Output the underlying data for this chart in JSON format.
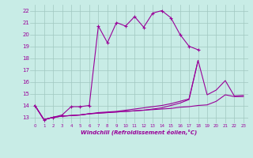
{
  "xlabel": "Windchill (Refroidissement éolien,°C)",
  "xlim": [
    -0.5,
    23.5
  ],
  "ylim": [
    12.5,
    22.5
  ],
  "yticks": [
    13,
    14,
    15,
    16,
    17,
    18,
    19,
    20,
    21,
    22
  ],
  "xticks": [
    0,
    1,
    2,
    3,
    4,
    5,
    6,
    7,
    8,
    9,
    10,
    11,
    12,
    13,
    14,
    15,
    16,
    17,
    18,
    19,
    20,
    21,
    22,
    23
  ],
  "bg_color": "#c8ece6",
  "grid_color": "#a0c8c0",
  "line_color": "#990099",
  "line1_x": [
    0,
    1,
    2,
    3,
    4,
    5,
    6,
    7,
    8,
    9,
    10,
    11,
    12,
    13,
    14,
    15,
    16,
    17,
    18
  ],
  "line1_y": [
    14.0,
    12.8,
    13.0,
    13.2,
    13.9,
    13.9,
    14.0,
    20.7,
    19.3,
    21.0,
    20.7,
    21.5,
    20.6,
    21.8,
    22.0,
    21.4,
    20.0,
    19.0,
    18.7
  ],
  "line2_x": [
    0,
    1,
    2,
    3,
    4,
    5,
    6,
    7,
    8,
    9,
    10,
    11,
    12,
    13,
    14,
    15,
    16,
    17,
    18,
    19,
    20,
    21,
    22,
    23
  ],
  "line2_y": [
    14.0,
    12.8,
    13.0,
    13.1,
    13.15,
    13.2,
    13.3,
    13.35,
    13.4,
    13.45,
    13.5,
    13.55,
    13.6,
    13.65,
    13.7,
    13.75,
    13.85,
    13.9,
    14.0,
    14.05,
    14.35,
    14.9,
    14.75,
    14.75
  ],
  "line3_x": [
    0,
    1,
    2,
    3,
    4,
    5,
    6,
    7,
    8,
    9,
    10,
    11,
    12,
    13,
    14,
    15,
    16,
    17,
    18
  ],
  "line3_y": [
    14.0,
    12.8,
    13.0,
    13.1,
    13.15,
    13.2,
    13.3,
    13.35,
    13.4,
    13.45,
    13.5,
    13.55,
    13.6,
    13.7,
    13.8,
    14.0,
    14.2,
    14.5,
    17.8
  ],
  "line4_x": [
    0,
    1,
    2,
    3,
    4,
    5,
    6,
    7,
    8,
    9,
    10,
    11,
    12,
    13,
    14,
    15,
    16,
    17,
    18,
    19,
    20,
    21,
    22,
    23
  ],
  "line4_y": [
    14.0,
    12.8,
    13.0,
    13.1,
    13.15,
    13.2,
    13.3,
    13.4,
    13.45,
    13.5,
    13.6,
    13.7,
    13.8,
    13.9,
    14.0,
    14.15,
    14.35,
    14.55,
    17.8,
    14.9,
    15.3,
    16.1,
    14.8,
    14.85
  ]
}
